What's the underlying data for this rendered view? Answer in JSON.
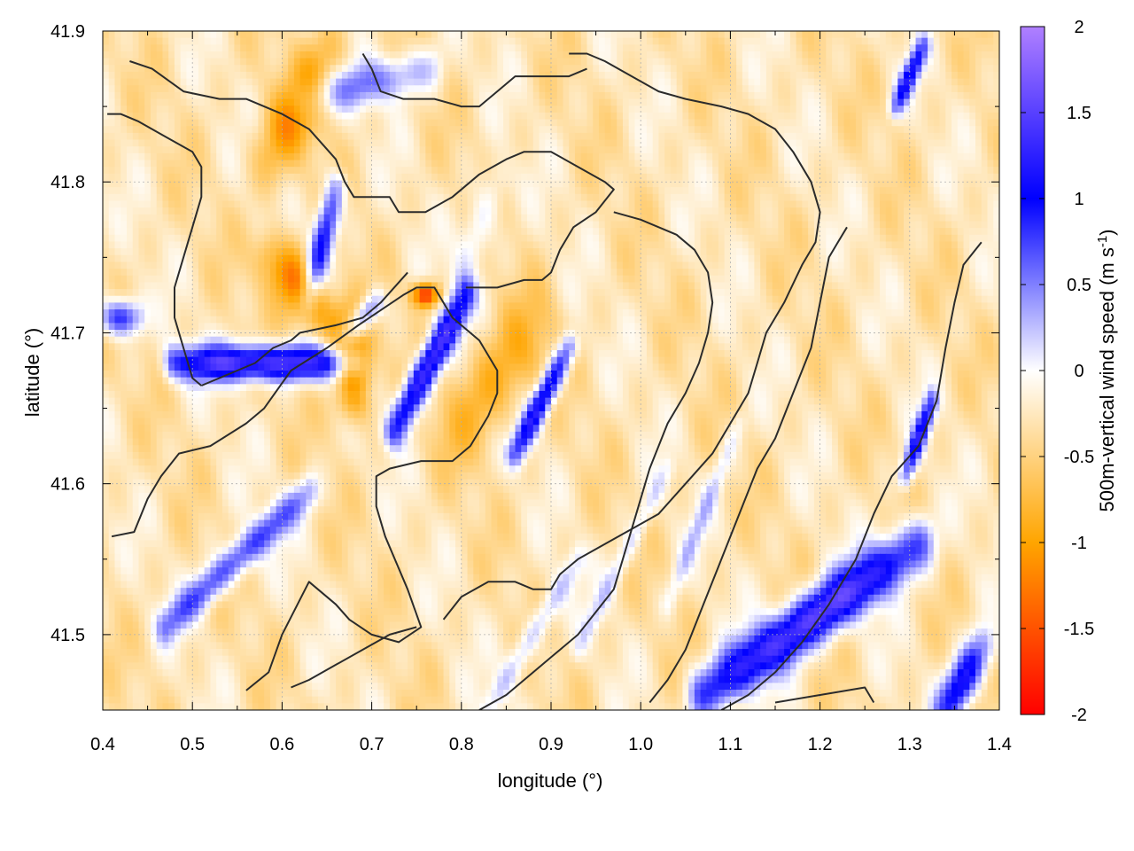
{
  "chart_data": {
    "type": "heatmap",
    "title": "",
    "xlabel": "longitude (°)",
    "ylabel": "latitude (°)",
    "colorbar_label": "500m-vertical wind speed (m s",
    "colorbar_label_sup": "-1",
    "colorbar_label_end": ")",
    "xlim": [
      0.4,
      1.4
    ],
    "ylim": [
      41.45,
      41.9
    ],
    "x_ticks": [
      0.4,
      0.5,
      0.6,
      0.7,
      0.8,
      0.9,
      1.0,
      1.1,
      1.2,
      1.3,
      1.4
    ],
    "x_tick_labels": [
      "0.4",
      "0.5",
      "0.6",
      "0.7",
      "0.8",
      "0.9",
      "1.0",
      "1.1",
      "1.2",
      "1.3",
      "1.4"
    ],
    "y_ticks": [
      41.5,
      41.6,
      41.7,
      41.8,
      41.9
    ],
    "y_tick_labels": [
      "41.5",
      "41.6",
      "41.7",
      "41.8",
      "41.9"
    ],
    "colorbar_range": [
      -2,
      2
    ],
    "colorbar_ticks": [
      2,
      1.5,
      1,
      0.5,
      0,
      -0.5,
      -1,
      -1.5,
      -2
    ],
    "colorbar_tick_labels": [
      "2",
      "1.5",
      "1",
      "0.5",
      "0",
      "-0.5",
      "-1",
      "-1.5",
      "-2"
    ],
    "colorbar_colors": {
      "min": "#ff0000",
      "low": "#ffa500",
      "zero": "#ffffff",
      "high": "#0000ff",
      "max": "#b080ff"
    },
    "grid": true,
    "features": [
      {
        "x": 0.58,
        "y": 41.68,
        "vx": 0.1,
        "vy": 0.0,
        "w": 0.012,
        "v": 1.8
      },
      {
        "x": 0.765,
        "y": 41.68,
        "vx": 0.04,
        "vy": 0.045,
        "w": 0.012,
        "v": 1.8
      },
      {
        "x": 0.89,
        "y": 41.655,
        "vx": 0.03,
        "vy": 0.035,
        "w": 0.01,
        "v": 1.6
      },
      {
        "x": 0.645,
        "y": 41.76,
        "vx": 0.015,
        "vy": 0.035,
        "w": 0.012,
        "v": 1.4
      },
      {
        "x": 0.69,
        "y": 41.71,
        "vx": 0.015,
        "vy": 0.01,
        "w": 0.01,
        "v": 1.2
      },
      {
        "x": 0.55,
        "y": 41.55,
        "vx": 0.08,
        "vy": 0.045,
        "w": 0.012,
        "v": 1.1
      },
      {
        "x": 0.695,
        "y": 41.865,
        "vx": 0.07,
        "vy": 0.01,
        "w": 0.015,
        "v": 0.8
      },
      {
        "x": 1.19,
        "y": 41.51,
        "vx": 0.12,
        "vy": 0.05,
        "w": 0.018,
        "v": 1.8
      },
      {
        "x": 1.31,
        "y": 41.63,
        "vx": 0.015,
        "vy": 0.025,
        "w": 0.008,
        "v": 1.4
      },
      {
        "x": 1.36,
        "y": 41.47,
        "vx": 0.02,
        "vy": 0.02,
        "w": 0.015,
        "v": 1.5
      },
      {
        "x": 1.3,
        "y": 41.87,
        "vx": 0.015,
        "vy": 0.02,
        "w": 0.008,
        "v": 1.3
      },
      {
        "x": 0.42,
        "y": 41.71,
        "vx": 0.015,
        "vy": 0.0,
        "w": 0.012,
        "v": 1.3
      },
      {
        "x": 0.88,
        "y": 41.5,
        "vx": 0.05,
        "vy": 0.05,
        "w": 0.01,
        "v": 0.6
      },
      {
        "x": 0.98,
        "y": 41.55,
        "vx": 0.05,
        "vy": 0.06,
        "w": 0.008,
        "v": 0.45
      },
      {
        "x": 1.07,
        "y": 41.58,
        "vx": 0.04,
        "vy": 0.06,
        "w": 0.008,
        "v": 0.45
      },
      {
        "x": 0.82,
        "y": 41.77,
        "vx": 0.02,
        "vy": 0.03,
        "w": 0.015,
        "v": 0.5
      },
      {
        "x": 0.62,
        "y": 41.73,
        "vx": -0.03,
        "vy": 0.02,
        "w": 0.02,
        "v": -1.1
      },
      {
        "x": 0.68,
        "y": 41.68,
        "vx": 0.0,
        "vy": 0.02,
        "w": 0.02,
        "v": -1.4
      },
      {
        "x": 0.62,
        "y": 41.85,
        "vx": 0.03,
        "vy": 0.03,
        "w": 0.025,
        "v": -0.8
      },
      {
        "x": 0.84,
        "y": 41.67,
        "vx": 0.04,
        "vy": 0.03,
        "w": 0.03,
        "v": -0.6
      },
      {
        "x": 0.76,
        "y": 41.725,
        "vx": 0.01,
        "vy": 0.0,
        "w": 0.008,
        "v": -1.5
      }
    ],
    "contours": [
      [
        [
          0.41,
          41.565
        ],
        [
          0.435,
          41.568
        ],
        [
          0.45,
          41.59
        ],
        [
          0.465,
          41.605
        ],
        [
          0.485,
          41.62
        ],
        [
          0.52,
          41.625
        ],
        [
          0.56,
          41.64
        ],
        [
          0.58,
          41.65
        ],
        [
          0.61,
          41.675
        ],
        [
          0.65,
          41.69
        ],
        [
          0.685,
          41.705
        ],
        [
          0.735,
          41.725
        ],
        [
          0.75,
          41.73
        ],
        [
          0.77,
          41.73
        ],
        [
          0.79,
          41.71
        ],
        [
          0.82,
          41.695
        ],
        [
          0.84,
          41.675
        ],
        [
          0.84,
          41.66
        ],
        [
          0.83,
          41.645
        ],
        [
          0.81,
          41.625
        ],
        [
          0.79,
          41.615
        ],
        [
          0.755,
          41.615
        ],
        [
          0.72,
          41.61
        ],
        [
          0.705,
          41.605
        ],
        [
          0.705,
          41.585
        ],
        [
          0.715,
          41.565
        ],
        [
          0.74,
          41.53
        ],
        [
          0.755,
          41.505
        ],
        [
          0.73,
          41.495
        ],
        [
          0.7,
          41.5
        ],
        [
          0.675,
          41.51
        ],
        [
          0.66,
          41.52
        ],
        [
          0.63,
          41.535
        ],
        [
          0.6,
          41.5
        ],
        [
          0.585,
          41.475
        ],
        [
          0.56,
          41.463
        ]
      ],
      [
        [
          0.43,
          41.88
        ],
        [
          0.455,
          41.875
        ],
        [
          0.49,
          41.86
        ],
        [
          0.53,
          41.855
        ],
        [
          0.55,
          41.855
        ],
        [
          0.56,
          41.855
        ],
        [
          0.6,
          41.845
        ],
        [
          0.63,
          41.835
        ],
        [
          0.66,
          41.815
        ],
        [
          0.67,
          41.8
        ],
        [
          0.68,
          41.79
        ],
        [
          0.7,
          41.79
        ],
        [
          0.72,
          41.79
        ],
        [
          0.73,
          41.78
        ],
        [
          0.76,
          41.78
        ],
        [
          0.79,
          41.79
        ],
        [
          0.82,
          41.805
        ],
        [
          0.85,
          41.815
        ],
        [
          0.87,
          41.82
        ],
        [
          0.9,
          41.82
        ],
        [
          0.93,
          41.81
        ],
        [
          0.96,
          41.8
        ],
        [
          0.97,
          41.795
        ],
        [
          0.95,
          41.78
        ],
        [
          0.925,
          41.77
        ],
        [
          0.91,
          41.755
        ],
        [
          0.9,
          41.74
        ],
        [
          0.89,
          41.735
        ],
        [
          0.87,
          41.735
        ],
        [
          0.84,
          41.73
        ],
        [
          0.805,
          41.73
        ]
      ],
      [
        [
          0.405,
          41.845
        ],
        [
          0.42,
          41.845
        ],
        [
          0.44,
          41.84
        ],
        [
          0.47,
          41.83
        ],
        [
          0.5,
          41.82
        ],
        [
          0.51,
          41.81
        ],
        [
          0.51,
          41.79
        ],
        [
          0.5,
          41.77
        ],
        [
          0.49,
          41.75
        ],
        [
          0.48,
          41.73
        ],
        [
          0.48,
          41.71
        ],
        [
          0.49,
          41.69
        ],
        [
          0.5,
          41.67
        ],
        [
          0.51,
          41.665
        ]
      ],
      [
        [
          0.51,
          41.665
        ],
        [
          0.53,
          41.67
        ],
        [
          0.55,
          41.675
        ],
        [
          0.57,
          41.68
        ],
        [
          0.59,
          41.69
        ],
        [
          0.61,
          41.695
        ],
        [
          0.62,
          41.7
        ],
        [
          0.66,
          41.705
        ],
        [
          0.69,
          41.71
        ],
        [
          0.71,
          41.72
        ],
        [
          0.74,
          41.74
        ]
      ],
      [
        [
          0.61,
          41.465
        ],
        [
          0.63,
          41.47
        ],
        [
          0.66,
          41.48
        ],
        [
          0.69,
          41.49
        ],
        [
          0.72,
          41.5
        ],
        [
          0.75,
          41.505
        ]
      ],
      [
        [
          0.69,
          41.885
        ],
        [
          0.7,
          41.875
        ],
        [
          0.71,
          41.86
        ],
        [
          0.735,
          41.855
        ],
        [
          0.77,
          41.855
        ],
        [
          0.8,
          41.85
        ],
        [
          0.82,
          41.85
        ],
        [
          0.84,
          41.86
        ],
        [
          0.86,
          41.87
        ],
        [
          0.88,
          41.87
        ],
        [
          0.9,
          41.87
        ],
        [
          0.92,
          41.87
        ],
        [
          0.94,
          41.875
        ]
      ],
      [
        [
          0.78,
          41.51
        ],
        [
          0.8,
          41.525
        ],
        [
          0.83,
          41.535
        ],
        [
          0.86,
          41.535
        ],
        [
          0.88,
          41.53
        ],
        [
          0.9,
          41.53
        ],
        [
          0.91,
          41.54
        ],
        [
          0.93,
          41.55
        ],
        [
          0.96,
          41.56
        ],
        [
          0.99,
          41.57
        ],
        [
          1.02,
          41.58
        ],
        [
          1.05,
          41.6
        ],
        [
          1.08,
          41.62
        ],
        [
          1.1,
          41.64
        ],
        [
          1.12,
          41.66
        ],
        [
          1.13,
          41.68
        ],
        [
          1.14,
          41.7
        ],
        [
          1.16,
          41.72
        ],
        [
          1.18,
          41.745
        ],
        [
          1.195,
          41.76
        ],
        [
          1.2,
          41.78
        ],
        [
          1.19,
          41.8
        ],
        [
          1.17,
          41.82
        ],
        [
          1.15,
          41.835
        ],
        [
          1.12,
          41.845
        ],
        [
          1.09,
          41.85
        ],
        [
          1.05,
          41.855
        ],
        [
          1.02,
          41.86
        ],
        [
          0.99,
          41.87
        ],
        [
          0.96,
          41.88
        ],
        [
          0.94,
          41.885
        ],
        [
          0.92,
          41.885
        ]
      ],
      [
        [
          0.82,
          41.45
        ],
        [
          0.85,
          41.46
        ],
        [
          0.87,
          41.47
        ],
        [
          0.9,
          41.485
        ],
        [
          0.93,
          41.5
        ],
        [
          0.95,
          41.515
        ],
        [
          0.97,
          41.53
        ],
        [
          0.98,
          41.55
        ],
        [
          0.99,
          41.57
        ],
        [
          1.0,
          41.59
        ],
        [
          1.01,
          41.61
        ],
        [
          1.03,
          41.64
        ],
        [
          1.05,
          41.66
        ],
        [
          1.065,
          41.68
        ],
        [
          1.075,
          41.7
        ],
        [
          1.08,
          41.72
        ],
        [
          1.075,
          41.74
        ],
        [
          1.06,
          41.755
        ],
        [
          1.04,
          41.765
        ],
        [
          1.0,
          41.775
        ],
        [
          0.97,
          41.78
        ]
      ],
      [
        [
          1.01,
          41.455
        ],
        [
          1.03,
          41.47
        ],
        [
          1.05,
          41.49
        ],
        [
          1.07,
          41.52
        ],
        [
          1.09,
          41.55
        ],
        [
          1.11,
          41.58
        ],
        [
          1.13,
          41.61
        ],
        [
          1.15,
          41.63
        ],
        [
          1.17,
          41.66
        ],
        [
          1.19,
          41.69
        ],
        [
          1.2,
          41.72
        ],
        [
          1.21,
          41.75
        ],
        [
          1.22,
          41.76
        ],
        [
          1.23,
          41.77
        ]
      ],
      [
        [
          1.09,
          41.45
        ],
        [
          1.12,
          41.46
        ],
        [
          1.15,
          41.475
        ],
        [
          1.18,
          41.495
        ],
        [
          1.21,
          41.52
        ],
        [
          1.24,
          41.55
        ],
        [
          1.26,
          41.58
        ],
        [
          1.28,
          41.605
        ],
        [
          1.31,
          41.625
        ],
        [
          1.33,
          41.655
        ],
        [
          1.34,
          41.69
        ],
        [
          1.35,
          41.72
        ],
        [
          1.36,
          41.745
        ],
        [
          1.38,
          41.76
        ]
      ],
      [
        [
          1.15,
          41.455
        ],
        [
          1.2,
          41.46
        ],
        [
          1.25,
          41.465
        ],
        [
          1.26,
          41.455
        ]
      ]
    ]
  }
}
